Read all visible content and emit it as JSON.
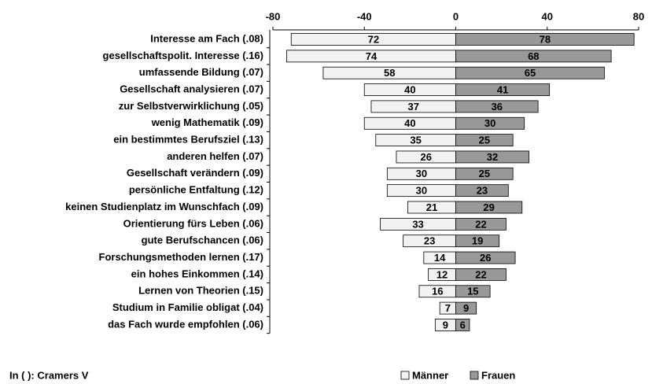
{
  "chart_data": {
    "type": "bar",
    "orientation": "horizontal",
    "stacking": "diverging",
    "note": "In ( ): Cramers V",
    "categories": [
      "Interesse am Fach (.08)",
      "gesellschaftspolit. Interesse (.16)",
      "umfassende Bildung (.07)",
      "Gesellschaft analysieren (.07)",
      "zur Selbstverwirklichung (.05)",
      "wenig Mathematik (.09)",
      "ein bestimmtes Berufsziel (.13)",
      "anderen helfen (.07)",
      "Gesellschaft verändern (.09)",
      "persönliche Entfaltung (.12)",
      "keinen Studienplatz im Wunschfach (.09)",
      "Orientierung fürs Leben (.06)",
      "gute Berufschancen (.06)",
      "Forschungsmethoden lernen (.17)",
      "ein hohes Einkommen (.14)",
      "Lernen von Theorien (.15)",
      "Studium in Familie obligat (.04)",
      "das Fach wurde empfohlen (.06)"
    ],
    "series": [
      {
        "name": "Männer",
        "color": "#f2f2f2",
        "values": [
          -72,
          -74,
          -58,
          -40,
          -37,
          -40,
          -35,
          -26,
          -30,
          -30,
          -21,
          -33,
          -23,
          -14,
          -12,
          -16,
          -7,
          -9
        ],
        "value_labels": [
          "72",
          "74",
          "58",
          "40",
          "37",
          "40",
          "35",
          "26",
          "30",
          "30",
          "21",
          "33",
          "23",
          "14",
          "12",
          "16",
          "7",
          "9"
        ]
      },
      {
        "name": "Frauen",
        "color": "#999999",
        "values": [
          78,
          68,
          65,
          41,
          36,
          30,
          25,
          32,
          25,
          23,
          29,
          22,
          19,
          26,
          22,
          15,
          9,
          6
        ]
      }
    ],
    "xlim": [
      -80,
      80
    ],
    "xticks": [
      -80,
      -40,
      0,
      40,
      80
    ],
    "legend": "bottom"
  }
}
